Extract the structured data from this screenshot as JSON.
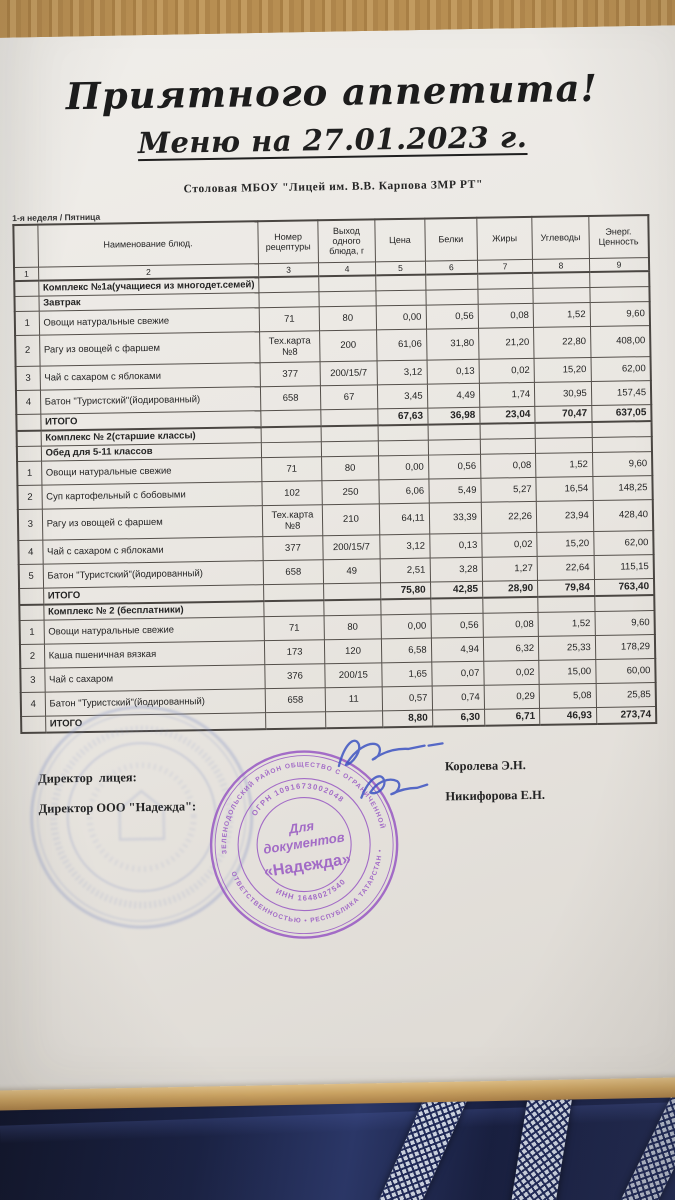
{
  "page": {
    "title": "Приятного аппетита!",
    "subtitle": "Меню на  27.01.2023 г.",
    "org": "Столовая МБОУ \"Лицей им. В.В. Карпова ЗМР РТ\"",
    "week_label": "1-я неделя / Пятница"
  },
  "table": {
    "headers": [
      "",
      "Наименование блюд.",
      "Номер рецептуры",
      "Выход одного блюда, г",
      "Цена",
      "Белки",
      "Жиры",
      "Углеводы",
      "Энерг. Ценность"
    ],
    "col_numbers": [
      "1",
      "2",
      "3",
      "4",
      "5",
      "6",
      "7",
      "8",
      "9"
    ],
    "sections": [
      {
        "title": "Комплекс №1а(учащиеся из многодет.семей)",
        "subtitle": "Завтрак",
        "rows": [
          {
            "num": "1",
            "name": "Овощи натуральные свежие",
            "recipe": "71",
            "out": "80",
            "price": "0,00",
            "protein": "0,56",
            "fat": "0,08",
            "carbs": "1,52",
            "energy": "9,60"
          },
          {
            "num": "2",
            "name": "Рагу из овощей с фаршем",
            "recipe": "Тех.карта №8",
            "out": "200",
            "price": "61,06",
            "protein": "31,80",
            "fat": "21,20",
            "carbs": "22,80",
            "energy": "408,00"
          },
          {
            "num": "3",
            "name": "Чай с сахаром с яблоками",
            "recipe": "377",
            "out": "200/15/7",
            "price": "3,12",
            "protein": "0,13",
            "fat": "0,02",
            "carbs": "15,20",
            "energy": "62,00"
          },
          {
            "num": "4",
            "name": "Батон \"Туристский\"(йодированный)",
            "recipe": "658",
            "out": "67",
            "price": "3,45",
            "protein": "4,49",
            "fat": "1,74",
            "carbs": "30,95",
            "energy": "157,45"
          }
        ],
        "total": {
          "label": "ИТОГО",
          "price": "67,63",
          "protein": "36,98",
          "fat": "23,04",
          "carbs": "70,47",
          "energy": "637,05"
        }
      },
      {
        "title": "Комплекс  № 2(старшие классы)",
        "subtitle": "Обед для 5-11 классов",
        "rows": [
          {
            "num": "1",
            "name": "Овощи натуральные свежие",
            "recipe": "71",
            "out": "80",
            "price": "0,00",
            "protein": "0,56",
            "fat": "0,08",
            "carbs": "1,52",
            "energy": "9,60"
          },
          {
            "num": "2",
            "name": "Суп картофельный с бобовыми",
            "recipe": "102",
            "out": "250",
            "price": "6,06",
            "protein": "5,49",
            "fat": "5,27",
            "carbs": "16,54",
            "energy": "148,25"
          },
          {
            "num": "3",
            "name": "Рагу из овощей с фаршем",
            "recipe": "Тех.карта №8",
            "out": "210",
            "price": "64,11",
            "protein": "33,39",
            "fat": "22,26",
            "carbs": "23,94",
            "energy": "428,40"
          },
          {
            "num": "4",
            "name": "Чай с сахаром с яблоками",
            "recipe": "377",
            "out": "200/15/7",
            "price": "3,12",
            "protein": "0,13",
            "fat": "0,02",
            "carbs": "15,20",
            "energy": "62,00"
          },
          {
            "num": "5",
            "name": "Батон \"Туристский\"(йодированный)",
            "recipe": "658",
            "out": "49",
            "price": "2,51",
            "protein": "3,28",
            "fat": "1,27",
            "carbs": "22,64",
            "energy": "115,15"
          }
        ],
        "total": {
          "label": "ИТОГО",
          "price": "75,80",
          "protein": "42,85",
          "fat": "28,90",
          "carbs": "79,84",
          "energy": "763,40"
        }
      },
      {
        "title": "Комплекс № 2  (бесплатники)",
        "subtitle": "",
        "rows": [
          {
            "num": "1",
            "name": "Овощи натуральные свежие",
            "recipe": "71",
            "out": "80",
            "price": "0,00",
            "protein": "0,56",
            "fat": "0,08",
            "carbs": "1,52",
            "energy": "9,60"
          },
          {
            "num": "2",
            "name": "Каша пшеничная вязкая",
            "recipe": "173",
            "out": "120",
            "price": "6,58",
            "protein": "4,94",
            "fat": "6,32",
            "carbs": "25,33",
            "energy": "178,29"
          },
          {
            "num": "3",
            "name": "Чай с сахаром",
            "recipe": "376",
            "out": "200/15",
            "price": "1,65",
            "protein": "0,07",
            "fat": "0,02",
            "carbs": "15,00",
            "energy": "60,00"
          },
          {
            "num": "4",
            "name": "Батон \"Туристский\"(йодированный)",
            "recipe": "658",
            "out": "11",
            "price": "0,57",
            "protein": "0,74",
            "fat": "0,29",
            "carbs": "5,08",
            "energy": "25,85"
          }
        ],
        "total": {
          "label": "ИТОГО",
          "price": "8,80",
          "protein": "6,30",
          "fat": "6,71",
          "carbs": "46,93",
          "energy": "273,74"
        }
      }
    ]
  },
  "signatures": {
    "label1": "Директор  лицея:",
    "name1": "Королева Э.Н.",
    "label2": "Директор ООО \"Надежда\":",
    "name2": "Никифорова Е.Н."
  },
  "stamp": {
    "outer_top": "ЗЕЛЕНОДОЛЬСКИЙ РАЙОН ОБЩЕСТВО С ОГРАНИЧЕННОЙ",
    "outer_bottom": "ОТВЕТСТВЕННОСТЬЮ • РЕСПУБЛИКА ТАТАРСТАН •",
    "ring_top": "ОГРН 1091673002048",
    "ring_bottom": "ИНН 1648027540",
    "center_line1": "Для",
    "center_line2": "документов",
    "center_line3": "«Надежда»"
  },
  "colors": {
    "stamp-purple": "#9a5cc4",
    "signature-blue": "#3d53c2",
    "fabric-navy": "#1a2244",
    "paper": "#eae7e2"
  }
}
